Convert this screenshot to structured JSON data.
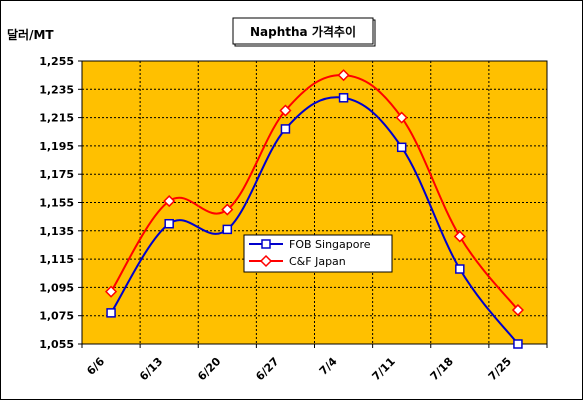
{
  "chart_data": {
    "type": "line",
    "title": "Naphtha 가격추이",
    "unit_label": "달러/MT",
    "x": [
      "6/6",
      "6/13",
      "6/20",
      "6/27",
      "7/4",
      "7/11",
      "7/18",
      "7/25"
    ],
    "ylim": [
      1055,
      1255
    ],
    "yticks": [
      1055,
      1075,
      1095,
      1115,
      1135,
      1155,
      1175,
      1195,
      1215,
      1235,
      1255
    ],
    "ytick_labels": [
      "1,055",
      "1,075",
      "1,095",
      "1,115",
      "1,135",
      "1,155",
      "1,175",
      "1,195",
      "1,215",
      "1,235",
      "1,255"
    ],
    "grid": true,
    "plot_background": "#FFC000",
    "legend_position": "center-right",
    "series": [
      {
        "name": "FOB Singapore",
        "color": "#0000CC",
        "marker": "square",
        "values": [
          1077,
          1140,
          1136,
          1207,
          1229,
          1194,
          1108,
          1055
        ]
      },
      {
        "name": "C&F Japan",
        "color": "#FF0000",
        "marker": "diamond",
        "values": [
          1092,
          1156,
          1150,
          1220,
          1245,
          1215,
          1131,
          1079
        ]
      }
    ]
  }
}
